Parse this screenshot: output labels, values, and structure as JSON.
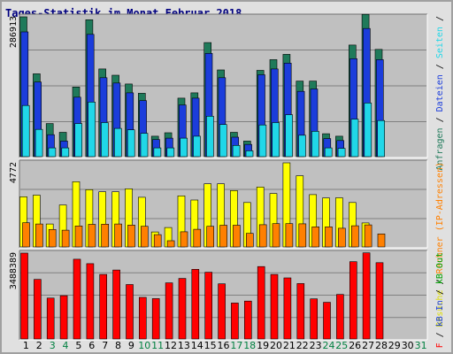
{
  "chart_data": {
    "type": "bar",
    "title": "Tages-Statistik im Monat Februar 2018",
    "categories": [
      "1",
      "2",
      "3",
      "4",
      "5",
      "6",
      "7",
      "8",
      "9",
      "10",
      "11",
      "12",
      "13",
      "14",
      "15",
      "16",
      "17",
      "18",
      "19",
      "20",
      "21",
      "22",
      "23",
      "24",
      "25",
      "26",
      "27",
      "28",
      "29",
      "30",
      "31"
    ],
    "weekend_days": [
      "3",
      "4",
      "10",
      "11",
      "17",
      "18",
      "24",
      "25",
      "31"
    ],
    "panels": [
      {
        "id": "top",
        "scale_label": "286913",
        "max": 286913,
        "series": [
          {
            "name": "Anfragen",
            "color": "#1f7a5a",
            "values": [
              286913,
              170000,
              68000,
              50000,
              143000,
              281000,
              180000,
              167000,
              149000,
              130000,
              42000,
              49000,
              120000,
              131000,
              234000,
              178000,
              50000,
              32000,
              177000,
              199000,
              210000,
              155000,
              155000,
              47000,
              42000,
              229000,
              292000,
              220000,
              0,
              0,
              0
            ]
          },
          {
            "name": "Dateien",
            "color": "#1b3ddb",
            "values": [
              256000,
              153000,
              45000,
              32000,
              122000,
              251000,
              162000,
              151000,
              131000,
              115000,
              35000,
              38000,
              106000,
              120000,
              212000,
              162000,
              40000,
              25000,
              168000,
              180000,
              192000,
              134000,
              139000,
              37000,
              33000,
              201000,
              263000,
              199000,
              0,
              0,
              0
            ]
          },
          {
            "name": "Seiten",
            "color": "#20d7e8",
            "values": [
              105000,
              56000,
              18000,
              18000,
              68000,
              112000,
              70000,
              58000,
              55000,
              48000,
              18000,
              18000,
              38000,
              42000,
              83000,
              66000,
              23000,
              12000,
              65000,
              70000,
              86000,
              44000,
              52000,
              18000,
              17000,
              77000,
              110000,
              74000,
              0,
              0,
              0
            ]
          }
        ]
      },
      {
        "id": "mid",
        "scale_label": "4772",
        "max": 4772,
        "series": [
          {
            "name": "Besuche",
            "color": "#ffff00",
            "values": [
              2850,
              2940,
              1300,
              2380,
              3700,
              3250,
              3130,
              3130,
              3300,
              2820,
              850,
              1100,
              2900,
              2660,
              3580,
              3580,
              3200,
              2520,
              3400,
              3030,
              4772,
              4040,
              2970,
              2780,
              2790,
              2520,
              1360,
              0,
              0,
              0,
              0
            ]
          },
          {
            "name": "Rechner",
            "color": "#ff8000",
            "values": [
              1370,
              1300,
              990,
              950,
              1190,
              1280,
              1290,
              1300,
              1240,
              1170,
              700,
              350,
              860,
              1000,
              1170,
              1230,
              1230,
              770,
              1260,
              1320,
              1320,
              1310,
              1140,
              1140,
              1060,
              1200,
              1250,
              740,
              0,
              0,
              0
            ]
          }
        ]
      },
      {
        "id": "bottom",
        "scale_label": "3488389",
        "max": 3488389,
        "series": [
          {
            "name": "kB F",
            "color": "#ff0000",
            "values": [
              3488389,
              2420000,
              1660000,
              1760000,
              3240000,
              3060000,
              2620000,
              2800000,
              2210000,
              1690000,
              1640000,
              2280000,
              2460000,
              2830000,
              2710000,
              2240000,
              1460000,
              1540000,
              2940000,
              2620000,
              2480000,
              2250000,
              1630000,
              1490000,
              1810000,
              3140000,
              3500000,
              3100000,
              0,
              0,
              0
            ]
          }
        ]
      }
    ],
    "right_labels": {
      "top": [
        {
          "text": "Anfragen",
          "color": "#1f7a5a"
        },
        {
          "text": " / ",
          "color": "#000000"
        },
        {
          "text": "Dateien",
          "color": "#1b3ddb"
        },
        {
          "text": " / ",
          "color": "#000000"
        },
        {
          "text": "Seiten",
          "color": "#20d7e8"
        },
        {
          "text": " / ",
          "color": "#000000"
        }
      ],
      "mid": [
        {
          "text": "Besuche",
          "color": "#dddd00"
        },
        {
          "text": " / ",
          "color": "#000000"
        },
        {
          "text": "Rechner",
          "color": "#ff8000"
        },
        {
          "text": " (IP-Adressen)",
          "color": "#ff8000"
        }
      ],
      "bottom": [
        {
          "text": "kB F",
          "color": "#ff0000"
        },
        {
          "text": " / ",
          "color": "#000000"
        },
        {
          "text": "kB In",
          "color": "#1b3ddb"
        },
        {
          "text": " / ",
          "color": "#000000"
        },
        {
          "text": "kB Out",
          "color": "#00a000"
        }
      ]
    },
    "colors": {
      "panel_bg": "#c0c0c0",
      "outer_bg": "#e0e0e0",
      "weekday_label": "#000000",
      "weekend_label": "#008040",
      "scale_label": "#000000"
    }
  }
}
